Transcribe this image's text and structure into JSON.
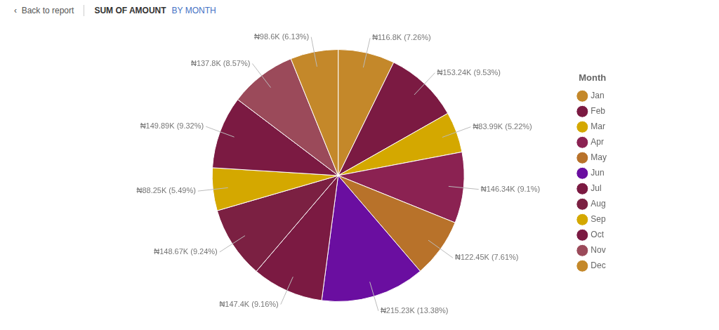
{
  "chart_data": {
    "type": "pie",
    "title": "SUM OF AMOUNT",
    "subtitle": "BY MONTH",
    "annotations": [
      "‹  Back to report"
    ],
    "legend_title": "Month",
    "categories": [
      "Jan",
      "Feb",
      "Mar",
      "Apr",
      "May",
      "Jun",
      "Jul",
      "Aug",
      "Sep",
      "Oct",
      "Nov",
      "Dec"
    ],
    "values": [
      116.8,
      153.24,
      83.99,
      146.34,
      122.45,
      215.23,
      147.4,
      148.67,
      88.25,
      149.89,
      137.8,
      98.6
    ],
    "value_labels": [
      "₦116.8K (7.26%)",
      "₦153.24K (9.53%)",
      "₦83.99K (5.22%)",
      "₦146.34K (9.1%)",
      "₦122.45K (7.61%)",
      "₦215.23K (13.38%)",
      "₦147.4K (9.16%)",
      "₦148.67K (9.24%)",
      "₦88.25K (5.49%)",
      "₦149.89K (9.32%)",
      "₦137.8K (8.57%)",
      "₦98.6K (6.13%)"
    ],
    "colors": [
      "#C4882A",
      "#7B1A42",
      "#D4A800",
      "#8B2252",
      "#B8722A",
      "#6A0EA0",
      "#7B1A42",
      "#7B2042",
      "#D4A800",
      "#7B1A42",
      "#9B4A5A",
      "#C4882A"
    ],
    "legend": "right",
    "data_labels": true
  }
}
